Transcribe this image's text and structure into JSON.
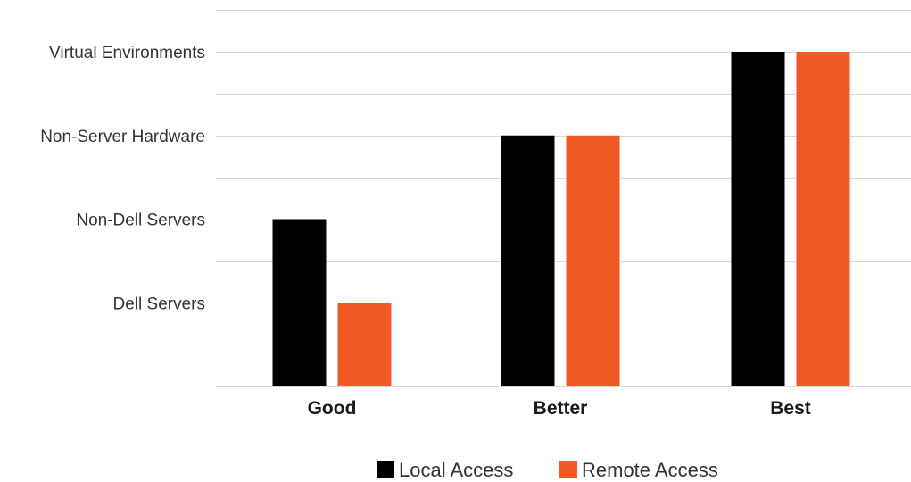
{
  "chart_data": {
    "type": "bar",
    "categories": [
      "Good",
      "Better",
      "Best"
    ],
    "y_levels": [
      "Dell Servers",
      "Non-Dell Servers",
      "Non-Server Hardware",
      "Virtual Environments"
    ],
    "ylim": [
      0,
      4
    ],
    "grid": true,
    "legend_position": "bottom-center",
    "series": [
      {
        "name": "Local Access",
        "color": "#000000",
        "values": [
          2,
          3,
          4
        ]
      },
      {
        "name": "Remote Access",
        "color": "#f15a24",
        "values": [
          1,
          3,
          4
        ]
      }
    ]
  }
}
